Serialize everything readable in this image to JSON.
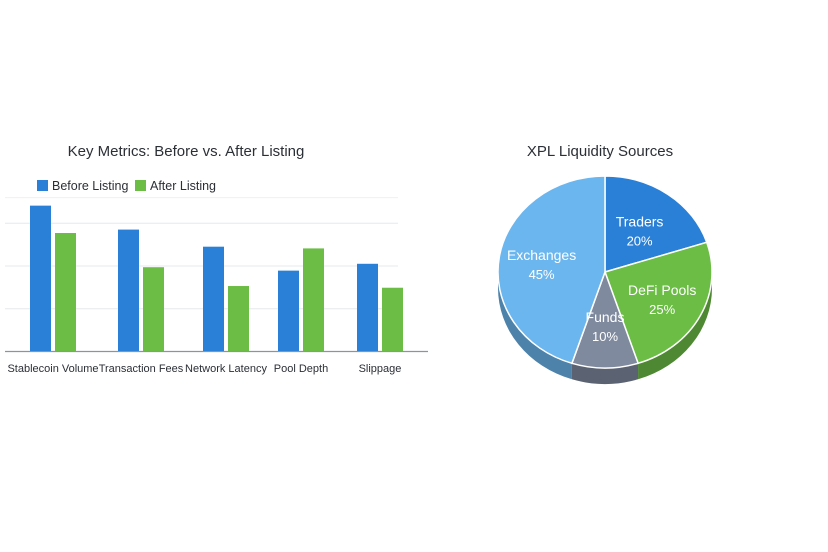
{
  "chart_data": [
    {
      "type": "bar",
      "title": "Key Metrics: Before vs. After Listing",
      "categories": [
        "Stablecoin Volume",
        "Transaction Fees",
        "Network Latency",
        "Pool Depth",
        "Slippage"
      ],
      "series": [
        {
          "name": "Before Listing",
          "values": [
            85,
            71,
            61,
            47,
            51
          ],
          "color": "#2a7fd6"
        },
        {
          "name": "After Listing",
          "values": [
            69,
            49,
            38,
            60,
            37
          ],
          "color": "#6cbd45"
        }
      ],
      "ylim": [
        0,
        100
      ],
      "grid": true,
      "legend": "top-left",
      "xlabel": "",
      "ylabel": ""
    },
    {
      "type": "pie",
      "title": "XPL Liquidity Sources",
      "style": "3d",
      "slices": [
        {
          "label": "Traders",
          "value": 20,
          "pct_label": "20%",
          "color": "#2a7fd6"
        },
        {
          "label": "DeFi Pools",
          "value": 25,
          "pct_label": "25%",
          "color": "#6cbd45"
        },
        {
          "label": "Funds",
          "value": 10,
          "pct_label": "10%",
          "color": "#7f8a9e"
        },
        {
          "label": "Exchanges",
          "value": 45,
          "pct_label": "45%",
          "color": "#6bb6ee"
        }
      ]
    }
  ]
}
